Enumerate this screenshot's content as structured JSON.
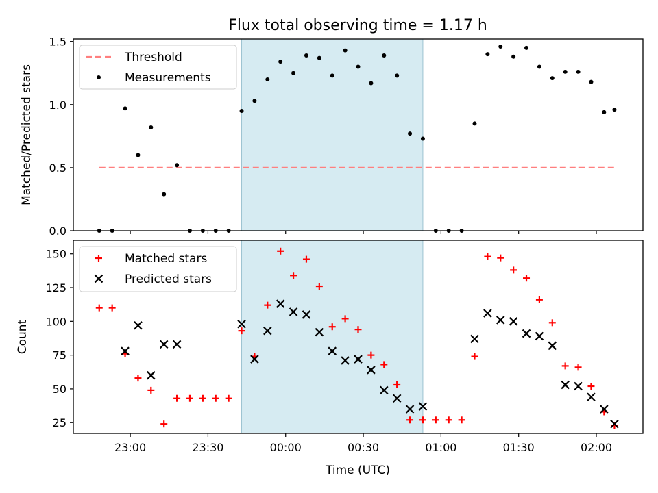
{
  "figure": {
    "title": "Flux total observing time = 1.17 h",
    "xlabel": "Time (UTC)"
  },
  "colors": {
    "observing_band": "#add8e6",
    "threshold": "#ff7f7f",
    "measurements": "#000000",
    "matched": "#ff0000",
    "predicted": "#000000"
  },
  "chart_data": [
    {
      "type": "scatter",
      "panel": "top",
      "title": "Flux total observing time = 1.17 h",
      "xlabel": "",
      "ylabel": "Matched/Predicted stars",
      "ylim": [
        0,
        1.52
      ],
      "yticks": [
        0.0,
        0.5,
        1.0,
        1.5
      ],
      "ytick_labels": [
        "0.0",
        "0.5",
        "1.0",
        "1.5"
      ],
      "xlim": [
        "22:38",
        "02:18"
      ],
      "xticks": [
        "23:00",
        "23:30",
        "00:00",
        "00:30",
        "01:00",
        "01:30",
        "02:00"
      ],
      "xtick_labels_shown": false,
      "legend": {
        "position": "top-left",
        "entries": [
          "Threshold",
          "Measurements"
        ]
      },
      "shaded_region": [
        "23:43",
        "00:53"
      ],
      "threshold": {
        "name": "Threshold",
        "y": 0.5,
        "x_range": [
          "22:48",
          "02:07"
        ],
        "style": "dashed"
      },
      "series": [
        {
          "name": "Measurements",
          "x": [
            "22:48",
            "22:53",
            "22:58",
            "23:03",
            "23:08",
            "23:13",
            "23:18",
            "23:23",
            "23:28",
            "23:33",
            "23:38",
            "23:43",
            "23:48",
            "23:53",
            "23:58",
            "00:03",
            "00:08",
            "00:13",
            "00:18",
            "00:23",
            "00:28",
            "00:33",
            "00:38",
            "00:43",
            "00:48",
            "00:53",
            "00:58",
            "01:03",
            "01:08",
            "01:13",
            "01:18",
            "01:23",
            "01:28",
            "01:33",
            "01:38",
            "01:43",
            "01:48",
            "01:53",
            "01:58",
            "02:03",
            "02:07"
          ],
          "y": [
            0.0,
            0.0,
            0.97,
            0.6,
            0.82,
            0.29,
            0.52,
            0.0,
            0.0,
            0.0,
            0.0,
            0.95,
            1.03,
            1.2,
            1.34,
            1.25,
            1.39,
            1.37,
            1.23,
            1.43,
            1.3,
            1.17,
            1.39,
            1.23,
            0.77,
            0.73,
            0.0,
            0.0,
            0.0,
            0.85,
            1.4,
            1.46,
            1.38,
            1.45,
            1.3,
            1.21,
            1.26,
            1.26,
            1.18,
            0.94,
            0.96
          ]
        }
      ]
    },
    {
      "type": "scatter",
      "panel": "bottom",
      "xlabel": "Time (UTC)",
      "ylabel": "Count",
      "ylim": [
        17,
        160
      ],
      "yticks": [
        25,
        50,
        75,
        100,
        125,
        150
      ],
      "ytick_labels": [
        "25",
        "50",
        "75",
        "100",
        "125",
        "150"
      ],
      "xlim": [
        "22:38",
        "02:18"
      ],
      "xticks": [
        "23:00",
        "23:30",
        "00:00",
        "00:30",
        "01:00",
        "01:30",
        "02:00"
      ],
      "xtick_labels": [
        "23:00",
        "23:30",
        "00:00",
        "00:30",
        "01:00",
        "01:30",
        "02:00"
      ],
      "legend": {
        "position": "top-left",
        "entries": [
          "Matched stars",
          "Predicted stars"
        ]
      },
      "shaded_region": [
        "23:43",
        "00:53"
      ],
      "series": [
        {
          "name": "Matched stars",
          "marker": "plus",
          "x": [
            "22:48",
            "22:53",
            "22:58",
            "23:03",
            "23:08",
            "23:13",
            "23:18",
            "23:23",
            "23:28",
            "23:33",
            "23:38",
            "23:43",
            "23:48",
            "23:53",
            "23:58",
            "00:03",
            "00:08",
            "00:13",
            "00:18",
            "00:23",
            "00:28",
            "00:33",
            "00:38",
            "00:43",
            "00:48",
            "00:53",
            "00:58",
            "01:03",
            "01:08",
            "01:13",
            "01:18",
            "01:23",
            "01:28",
            "01:33",
            "01:38",
            "01:43",
            "01:48",
            "01:53",
            "01:58",
            "02:03",
            "02:07"
          ],
          "y": [
            110,
            110,
            76,
            58,
            49,
            24,
            43,
            43,
            43,
            43,
            43,
            93,
            74,
            112,
            152,
            134,
            146,
            126,
            96,
            102,
            94,
            75,
            68,
            53,
            27,
            27,
            27,
            27,
            27,
            74,
            148,
            147,
            138,
            132,
            116,
            99,
            67,
            66,
            52,
            33,
            23
          ]
        },
        {
          "name": "Predicted stars",
          "marker": "x",
          "x": [
            "22:58",
            "23:03",
            "23:08",
            "23:13",
            "23:18",
            "23:43",
            "23:48",
            "23:53",
            "23:58",
            "00:03",
            "00:08",
            "00:13",
            "00:18",
            "00:23",
            "00:28",
            "00:33",
            "00:38",
            "00:43",
            "00:48",
            "00:53",
            "01:13",
            "01:18",
            "01:23",
            "01:28",
            "01:33",
            "01:38",
            "01:43",
            "01:48",
            "01:53",
            "01:58",
            "02:03",
            "02:07"
          ],
          "y": [
            78,
            97,
            60,
            83,
            83,
            98,
            72,
            93,
            113,
            107,
            105,
            92,
            78,
            71,
            72,
            64,
            49,
            43,
            35,
            37,
            87,
            106,
            101,
            100,
            91,
            89,
            82,
            53,
            52,
            44,
            35,
            24
          ]
        }
      ]
    }
  ]
}
